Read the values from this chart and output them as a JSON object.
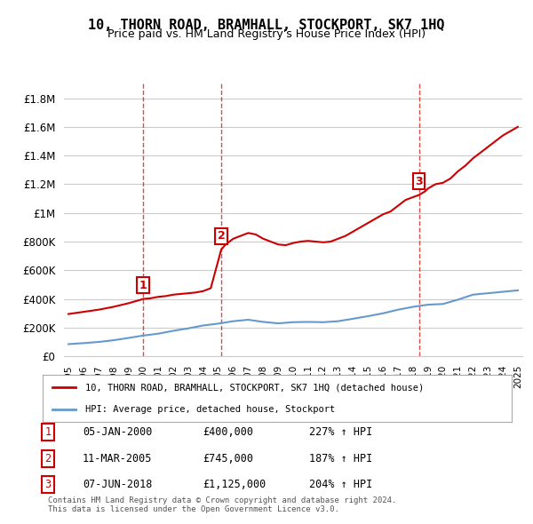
{
  "title": "10, THORN ROAD, BRAMHALL, STOCKPORT, SK7 1HQ",
  "subtitle": "Price paid vs. HM Land Registry's House Price Index (HPI)",
  "ylim": [
    0,
    1900000
  ],
  "yticks": [
    0,
    200000,
    400000,
    600000,
    800000,
    1000000,
    1200000,
    1400000,
    1600000,
    1800000
  ],
  "ytick_labels": [
    "£0",
    "£200K",
    "£400K",
    "£600K",
    "£800K",
    "£1M",
    "£1.2M",
    "£1.4M",
    "£1.6M",
    "£1.8M"
  ],
  "x_start_year": 1995,
  "x_end_year": 2025,
  "sale_color": "#cc0000",
  "hpi_color": "#6699cc",
  "background_color": "#ffffff",
  "grid_color": "#cccccc",
  "sale_points": [
    {
      "year": 2000.0,
      "price": 400000,
      "label": "1"
    },
    {
      "year": 2005.2,
      "price": 745000,
      "label": "2"
    },
    {
      "year": 2018.4,
      "price": 1125000,
      "label": "3"
    }
  ],
  "legend_sale_label": "10, THORN ROAD, BRAMHALL, STOCKPORT, SK7 1HQ (detached house)",
  "legend_hpi_label": "HPI: Average price, detached house, Stockport",
  "table_rows": [
    {
      "num": "1",
      "date": "05-JAN-2000",
      "price": "£400,000",
      "pct": "227% ↑ HPI"
    },
    {
      "num": "2",
      "date": "11-MAR-2005",
      "price": "£745,000",
      "pct": "187% ↑ HPI"
    },
    {
      "num": "3",
      "date": "07-JUN-2018",
      "price": "£1,125,000",
      "pct": "204% ↑ HPI"
    }
  ],
  "footer": "Contains HM Land Registry data © Crown copyright and database right 2024.\nThis data is licensed under the Open Government Licence v3.0.",
  "hpi_line": {
    "x": [
      1995,
      1996,
      1997,
      1998,
      1999,
      2000,
      2001,
      2002,
      2003,
      2004,
      2005,
      2006,
      2007,
      2008,
      2009,
      2010,
      2011,
      2012,
      2013,
      2014,
      2015,
      2016,
      2017,
      2018,
      2019,
      2020,
      2021,
      2022,
      2023,
      2024,
      2025
    ],
    "y": [
      85000,
      92000,
      100000,
      112000,
      128000,
      145000,
      158000,
      178000,
      195000,
      215000,
      228000,
      245000,
      255000,
      240000,
      230000,
      238000,
      240000,
      238000,
      245000,
      262000,
      280000,
      300000,
      325000,
      345000,
      360000,
      365000,
      395000,
      430000,
      440000,
      450000,
      460000
    ]
  },
  "sale_line": {
    "x": [
      1995.0,
      1996.0,
      1997.0,
      1998.0,
      1999.0,
      2000.0,
      2000.5,
      2001.0,
      2001.5,
      2002.0,
      2002.5,
      2003.0,
      2003.5,
      2004.0,
      2004.5,
      2005.2,
      2005.5,
      2006.0,
      2006.5,
      2007.0,
      2007.5,
      2008.0,
      2008.5,
      2009.0,
      2009.5,
      2010.0,
      2010.5,
      2011.0,
      2011.5,
      2012.0,
      2012.5,
      2013.0,
      2013.5,
      2014.0,
      2014.5,
      2015.0,
      2015.5,
      2016.0,
      2016.5,
      2017.0,
      2017.5,
      2018.0,
      2018.4,
      2018.8,
      2019.0,
      2019.5,
      2020.0,
      2020.5,
      2021.0,
      2021.5,
      2022.0,
      2022.5,
      2023.0,
      2023.5,
      2024.0,
      2024.5,
      2025.0
    ],
    "y": [
      295000,
      310000,
      325000,
      345000,
      370000,
      400000,
      405000,
      415000,
      420000,
      430000,
      435000,
      440000,
      445000,
      455000,
      475000,
      745000,
      780000,
      820000,
      840000,
      860000,
      850000,
      820000,
      800000,
      780000,
      775000,
      790000,
      800000,
      805000,
      800000,
      795000,
      800000,
      820000,
      840000,
      870000,
      900000,
      930000,
      960000,
      990000,
      1010000,
      1050000,
      1090000,
      1110000,
      1125000,
      1150000,
      1170000,
      1200000,
      1210000,
      1240000,
      1290000,
      1330000,
      1380000,
      1420000,
      1460000,
      1500000,
      1540000,
      1570000,
      1600000
    ]
  }
}
